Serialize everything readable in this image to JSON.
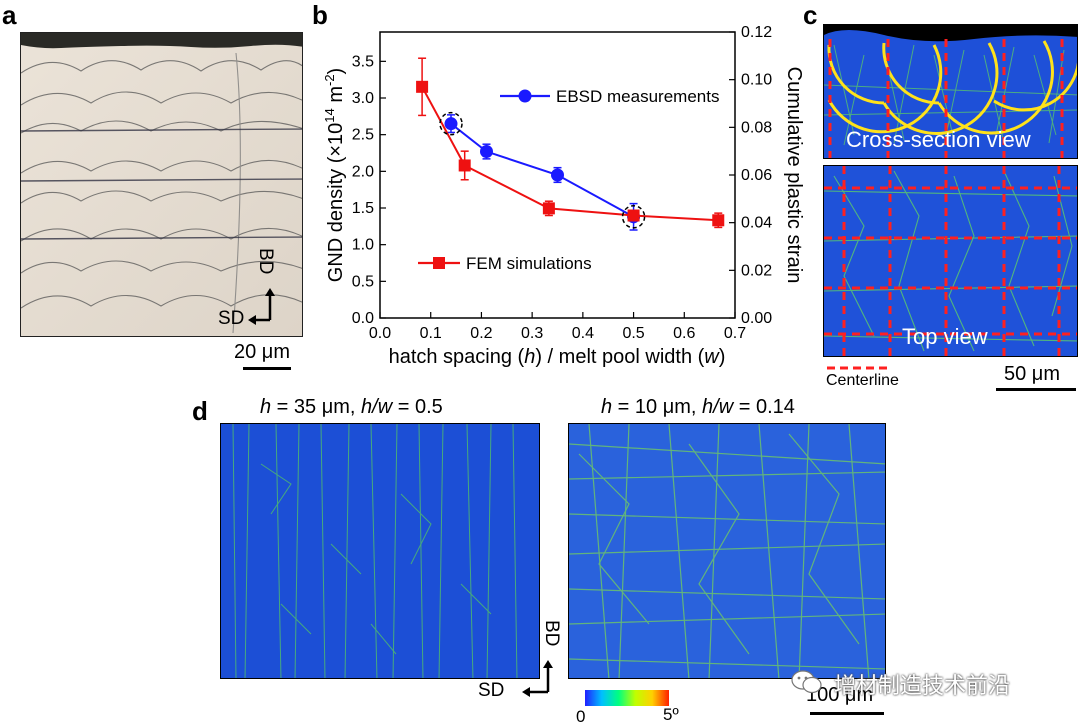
{
  "panels": {
    "a": {
      "letter": "a",
      "bd": "BD",
      "sd": "SD",
      "scale": "20 μm"
    },
    "b": {
      "letter": "b"
    },
    "c": {
      "letter": "c",
      "cross_label": "Cross-section view",
      "top_label": "Top view",
      "centerline": "Centerline",
      "scale": "50 μm"
    },
    "d": {
      "letter": "d",
      "title_left_h": "h",
      "title_left_rest": " = 35 μm, ",
      "title_left_hw": "h/w",
      "title_left_val": " = 0.5",
      "title_right_h": "h",
      "title_right_rest": " = 10 μm, ",
      "title_right_hw": "h/w",
      "title_right_val": " = 0.14",
      "bd": "BD",
      "sd": "SD",
      "colorbar_min": "0",
      "colorbar_max": "5º",
      "scale": "100 μm"
    }
  },
  "watermark": "增材制造技术前沿",
  "chart_data": {
    "type": "line",
    "xlabel_parts": [
      "hatch spacing (",
      "h",
      ") / melt pool width (",
      "w",
      ")"
    ],
    "ylabel": "GND density (×10",
    "ylabel_sup": "14",
    "ylabel_unit": " m",
    "ylabel_unit_sup": "-2",
    "ylabel_close": ")",
    "y2label": "Cumulative plastic strain",
    "xlim": [
      0.0,
      0.7
    ],
    "ylim": [
      0.0,
      3.9
    ],
    "y2lim": [
      0.0,
      0.12
    ],
    "xticks": [
      "0.0",
      "0.1",
      "0.2",
      "0.3",
      "0.4",
      "0.5",
      "0.6",
      "0.7"
    ],
    "yticks": [
      "0.0",
      "0.5",
      "1.0",
      "1.5",
      "2.0",
      "2.5",
      "3.0",
      "3.5"
    ],
    "y2ticks": [
      "0.00",
      "0.02",
      "0.04",
      "0.06",
      "0.08",
      "0.10",
      "0.12"
    ],
    "series": [
      {
        "name": "EBSD measurements",
        "color": "#1a1aff",
        "marker": "circle",
        "axis": "left",
        "x": [
          0.14,
          0.21,
          0.35,
          0.5
        ],
        "y": [
          2.65,
          2.27,
          1.95,
          1.38
        ],
        "err": [
          0.12,
          0.1,
          0.1,
          0.18
        ]
      },
      {
        "name": "FEM simulations",
        "color": "#ee1111",
        "marker": "square",
        "axis": "right",
        "x": [
          0.083,
          0.167,
          0.333,
          0.5,
          0.667
        ],
        "y": [
          0.097,
          0.064,
          0.046,
          0.043,
          0.041
        ],
        "err": [
          0.012,
          0.006,
          0.003,
          0.002,
          0.003
        ]
      }
    ],
    "highlighted_x": [
      0.14,
      0.5
    ]
  }
}
